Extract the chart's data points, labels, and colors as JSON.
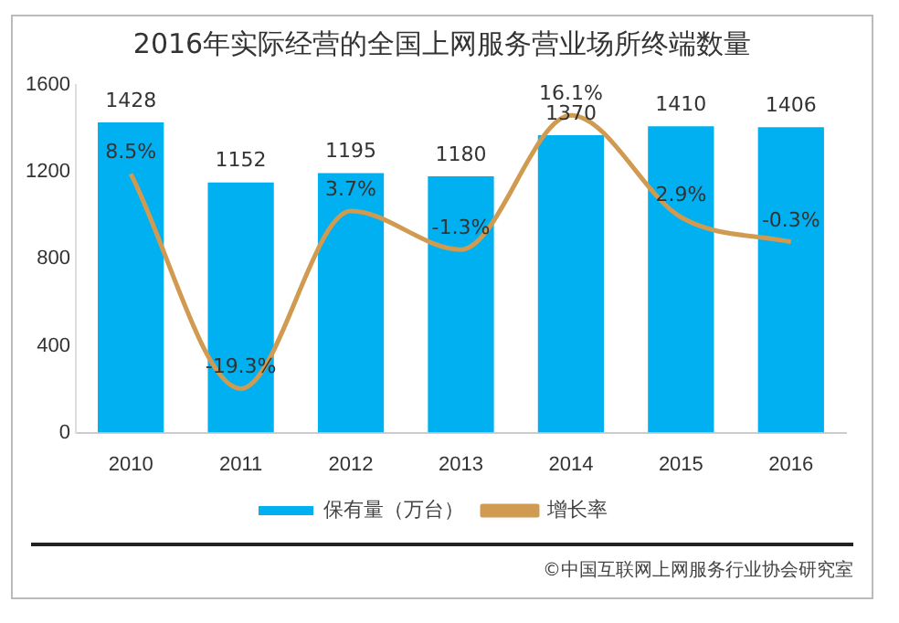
{
  "chart_data": {
    "type": "bar",
    "title": "2016年实际经营的全国上网服务营业场所终端数量",
    "categories": [
      "2010",
      "2011",
      "2012",
      "2013",
      "2014",
      "2015",
      "2016"
    ],
    "series": [
      {
        "name": "保有量（万台）",
        "color": "#00b0f0",
        "values": [
          1428,
          1152,
          1195,
          1180,
          1370,
          1410,
          1406
        ]
      },
      {
        "name": "增长率",
        "type": "line",
        "axis": "y2",
        "color": "#d09a50",
        "values": [
          8.5,
          -19.3,
          3.7,
          -1.3,
          16.1,
          2.9,
          -0.3
        ],
        "value_labels": [
          "8.5%",
          "-19.3%",
          "3.7%",
          "-1.3%",
          "16.1%",
          "2.9%",
          "-0.3%"
        ]
      }
    ],
    "ylim": [
      0,
      1600
    ],
    "yticks": [
      0,
      400,
      800,
      1200,
      1600
    ],
    "data_labels": true,
    "grid": false,
    "legend": "bottom",
    "marker": "none",
    "line_style": "solid",
    "annotations": [
      "©中国互联网上网服务行业协会研究室"
    ]
  }
}
